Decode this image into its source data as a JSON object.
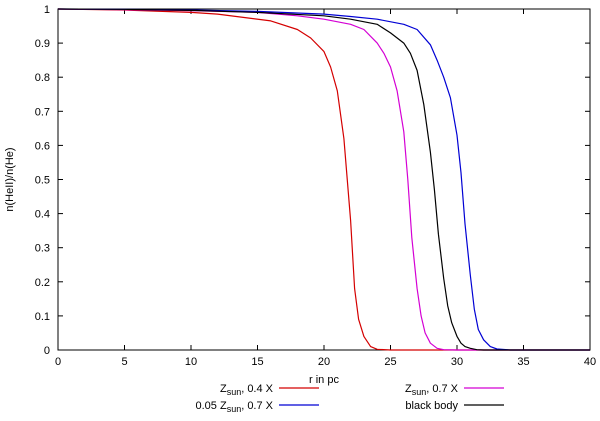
{
  "chart_data": {
    "type": "line",
    "title": "",
    "xlabel": "r in pc",
    "ylabel": "n(HeII)/n(He)",
    "xlim": [
      0,
      40
    ],
    "ylim": [
      0,
      1
    ],
    "xticks": [
      "0",
      "5",
      "10",
      "15",
      "20",
      "25",
      "30",
      "35",
      "40"
    ],
    "yticks": [
      "0",
      "0.1",
      "0.2",
      "0.3",
      "0.4",
      "0.5",
      "0.6",
      "0.7",
      "0.8",
      "0.9",
      "1"
    ],
    "grid": false,
    "legend_position": "bottom",
    "series": [
      {
        "name": "Z_sun, 0.4 X",
        "legend_parts": [
          "Z",
          "sun",
          ", 0.4 X"
        ],
        "color": "#d40000",
        "x": [
          0,
          5,
          10,
          12,
          14,
          16,
          18,
          19,
          20,
          20.5,
          21,
          21.5,
          22,
          22.3,
          22.6,
          23,
          23.5,
          24,
          25,
          40
        ],
        "y": [
          1,
          0.997,
          0.99,
          0.985,
          0.975,
          0.965,
          0.94,
          0.915,
          0.875,
          0.83,
          0.76,
          0.62,
          0.38,
          0.18,
          0.09,
          0.04,
          0.01,
          0.002,
          0,
          0
        ]
      },
      {
        "name": "Z_sun, 0.7 X",
        "legend_parts": [
          "Z",
          "sun",
          ", 0.7 X"
        ],
        "color": "#d400d4",
        "x": [
          0,
          5,
          10,
          15,
          18,
          20,
          22,
          23,
          24,
          24.5,
          25,
          25.5,
          26,
          26.3,
          26.6,
          27,
          27.3,
          27.6,
          28,
          28.5,
          29,
          30,
          40
        ],
        "y": [
          1,
          0.998,
          0.995,
          0.99,
          0.98,
          0.97,
          0.955,
          0.94,
          0.9,
          0.87,
          0.83,
          0.76,
          0.64,
          0.5,
          0.33,
          0.18,
          0.1,
          0.05,
          0.02,
          0.005,
          0.001,
          0,
          0
        ]
      },
      {
        "name": "0.05 Z_sun, 0.7 X",
        "legend_parts": [
          "0.05 Z",
          "sun",
          ", 0.7 X"
        ],
        "color": "#0000d4",
        "x": [
          0,
          5,
          10,
          15,
          20,
          22,
          24,
          26,
          27,
          28,
          28.5,
          29,
          29.5,
          30,
          30.3,
          30.6,
          31,
          31.3,
          31.6,
          32,
          32.5,
          33,
          34,
          40
        ],
        "y": [
          1,
          0.999,
          0.997,
          0.993,
          0.985,
          0.978,
          0.97,
          0.955,
          0.94,
          0.895,
          0.85,
          0.8,
          0.74,
          0.63,
          0.52,
          0.37,
          0.22,
          0.12,
          0.06,
          0.03,
          0.01,
          0.003,
          0,
          0
        ]
      },
      {
        "name": "black body",
        "legend_parts": [
          "black body"
        ],
        "color": "#000000",
        "x": [
          0,
          5,
          10,
          15,
          20,
          22,
          24,
          25,
          26,
          26.5,
          27,
          27.5,
          28,
          28.3,
          28.6,
          29,
          29.3,
          29.6,
          30,
          30.3,
          30.6,
          31,
          31.5,
          32,
          40
        ],
        "y": [
          1,
          0.999,
          0.996,
          0.99,
          0.98,
          0.97,
          0.955,
          0.93,
          0.9,
          0.87,
          0.82,
          0.72,
          0.58,
          0.47,
          0.34,
          0.21,
          0.13,
          0.08,
          0.04,
          0.02,
          0.01,
          0.005,
          0.001,
          0,
          0
        ]
      }
    ]
  }
}
